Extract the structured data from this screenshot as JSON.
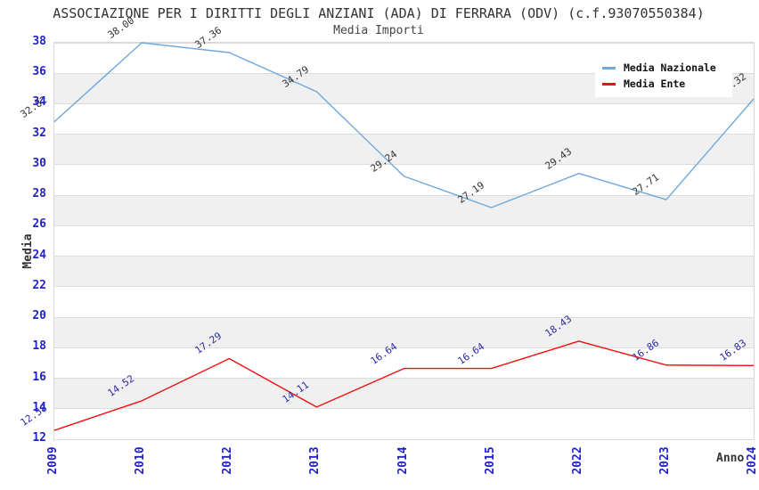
{
  "header": {
    "title": "ASSOCIAZIONE PER I DIRITTI DEGLI ANZIANI (ADA) DI FERRARA (ODV) (c.f.93070550384)",
    "subtitle": "Media Importi"
  },
  "axes": {
    "y_label": "Media",
    "x_label": "Anno"
  },
  "legend": {
    "position": "top-right",
    "items": [
      {
        "label": "Media Nazionale",
        "color": "#6fa8dc"
      },
      {
        "label": "Media Ente",
        "color": "#ee1111"
      }
    ]
  },
  "chart_data": {
    "type": "line",
    "title": "ASSOCIAZIONE PER I DIRITTI DEGLI ANZIANI (ADA) DI FERRARA (ODV) (c.f.93070550384)",
    "subtitle": "Media Importi",
    "xlabel": "Anno",
    "ylabel": "Media",
    "categories": [
      "2009",
      "2010",
      "2012",
      "2013",
      "2014",
      "2015",
      "2022",
      "2023",
      "2024"
    ],
    "series": [
      {
        "name": "Media Nazionale",
        "color": "#6fa8dc",
        "label_color": "#333333",
        "values": [
          32.82,
          38.0,
          37.36,
          34.79,
          29.24,
          27.19,
          29.43,
          27.71,
          34.32
        ]
      },
      {
        "name": "Media Ente",
        "color": "#ee1111",
        "label_color": "#2b2ba8",
        "values": [
          12.58,
          14.52,
          17.29,
          14.11,
          16.64,
          16.64,
          18.43,
          16.86,
          16.83
        ]
      }
    ],
    "ylim": [
      12,
      38
    ],
    "ytick_step": 2,
    "grid": true,
    "band_fill": true,
    "legend_position": "top-right",
    "colors": {
      "tick_label": "#2222cc",
      "band": "#f0f0f0",
      "gridline": "#dcdcdc",
      "axis_title": "#333333"
    }
  }
}
